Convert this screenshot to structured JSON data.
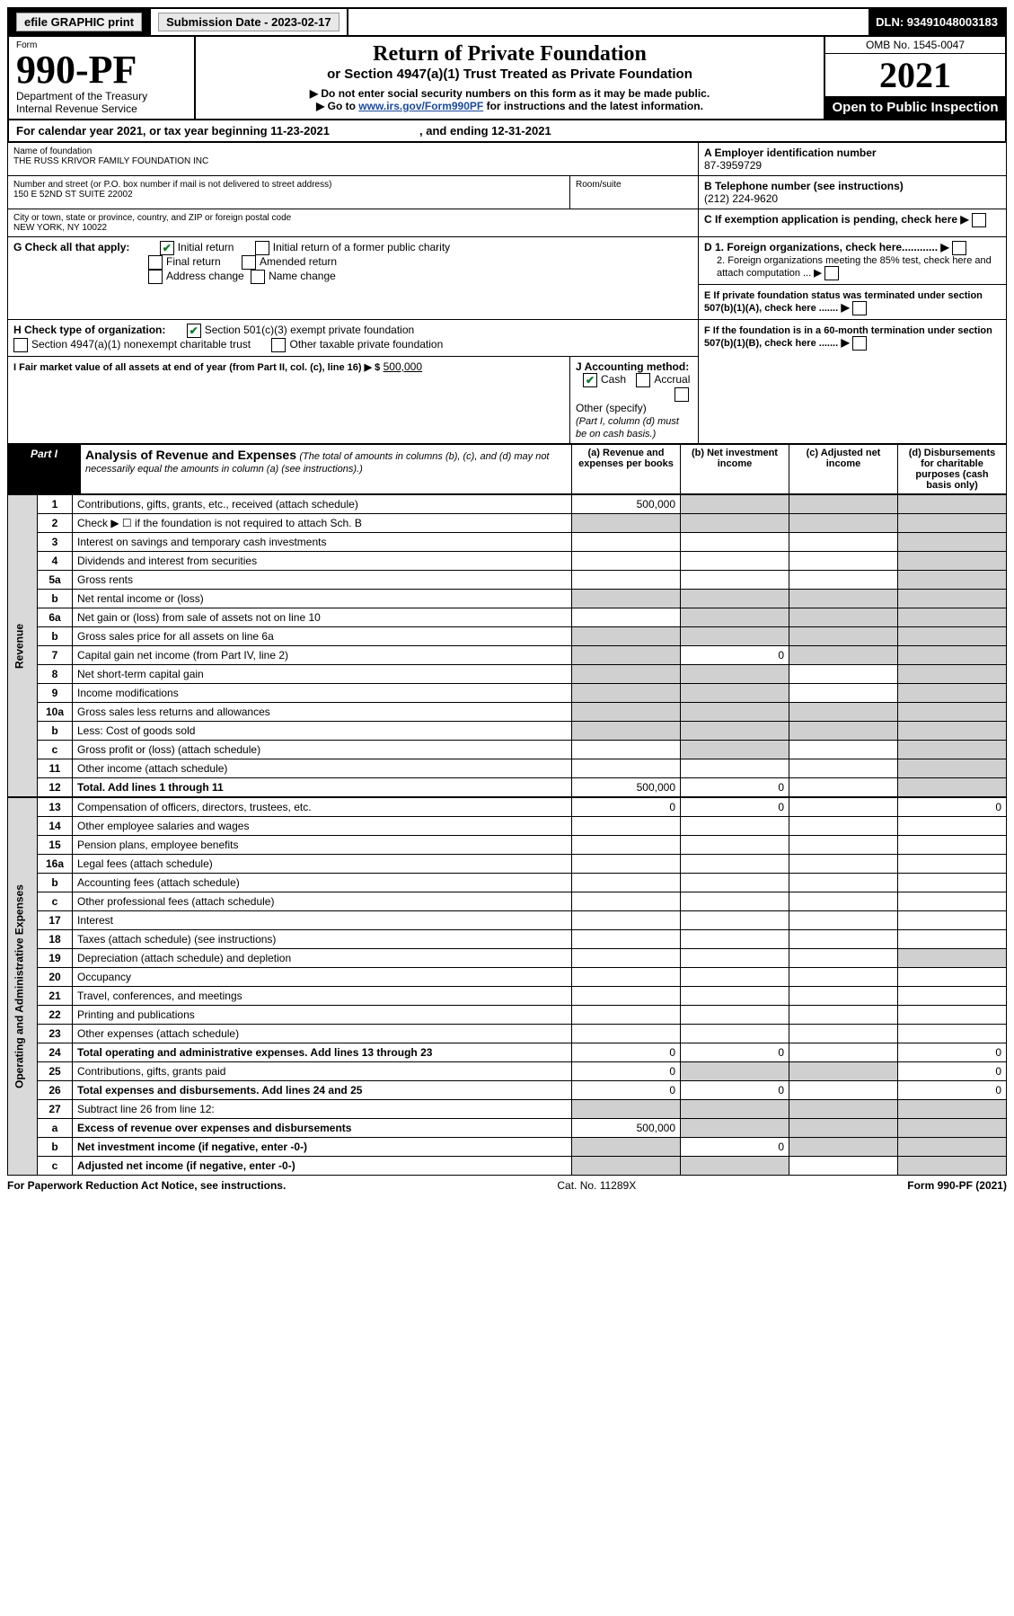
{
  "topbar": {
    "efile": "efile GRAPHIC print",
    "submission_label": "Submission Date - 2023-02-17",
    "dln": "DLN: 93491048003183"
  },
  "header": {
    "form_label": "Form",
    "form_number": "990-PF",
    "dept": "Department of the Treasury",
    "irs": "Internal Revenue Service",
    "title": "Return of Private Foundation",
    "subtitle": "or Section 4947(a)(1) Trust Treated as Private Foundation",
    "instr1": "▶ Do not enter social security numbers on this form as it may be made public.",
    "instr2_pre": "▶ Go to ",
    "instr2_link": "www.irs.gov/Form990PF",
    "instr2_post": " for instructions and the latest information.",
    "omb": "OMB No. 1545-0047",
    "year": "2021",
    "open_pub": "Open to Public Inspection"
  },
  "caly": {
    "line": "For calendar year 2021, or tax year beginning 11-23-2021",
    "ending": ", and ending 12-31-2021"
  },
  "info": {
    "name_lbl": "Name of foundation",
    "name": "THE RUSS KRIVOR FAMILY FOUNDATION INC",
    "addr_lbl": "Number and street (or P.O. box number if mail is not delivered to street address)",
    "addr": "150 E 52ND ST SUITE 22002",
    "room_lbl": "Room/suite",
    "city_lbl": "City or town, state or province, country, and ZIP or foreign postal code",
    "city": "NEW YORK, NY  10022",
    "ein_lbl": "A Employer identification number",
    "ein": "87-3959729",
    "phone_lbl": "B Telephone number (see instructions)",
    "phone": "(212) 224-9620",
    "c_lbl": "C If exemption application is pending, check here",
    "d1_lbl": "D 1. Foreign organizations, check here............",
    "d2_lbl": "2. Foreign organizations meeting the 85% test, check here and attach computation ...",
    "e_lbl": "E If private foundation status was terminated under section 507(b)(1)(A), check here .......",
    "f_lbl": "F If the foundation is in a 60-month termination under section 507(b)(1)(B), check here .......",
    "g_lbl": "G Check all that apply:",
    "g_opts": [
      "Initial return",
      "Initial return of a former public charity",
      "Final return",
      "Amended return",
      "Address change",
      "Name change"
    ],
    "h_lbl": "H Check type of organization:",
    "h_opts": [
      "Section 501(c)(3) exempt private foundation",
      "Section 4947(a)(1) nonexempt charitable trust",
      "Other taxable private foundation"
    ],
    "i_lbl": "I Fair market value of all assets at end of year (from Part II, col. (c), line 16) ▶ $",
    "i_val": "500,000",
    "j_lbl": "J Accounting method:",
    "j_opts": [
      "Cash",
      "Accrual",
      "Other (specify)"
    ],
    "j_note": "(Part I, column (d) must be on cash basis.)"
  },
  "part1": {
    "label": "Part I",
    "title": "Analysis of Revenue and Expenses",
    "desc": " (The total of amounts in columns (b), (c), and (d) may not necessarily equal the amounts in column (a) (see instructions).)",
    "col_a": "(a)   Revenue and expenses per books",
    "col_b": "(b)   Net investment income",
    "col_c": "(c)   Adjusted net income",
    "col_d": "(d)   Disbursements for charitable purposes (cash basis only)"
  },
  "sidebars": {
    "rev": "Revenue",
    "exp": "Operating and Administrative Expenses"
  },
  "rows_rev": [
    {
      "n": "1",
      "label": "Contributions, gifts, grants, etc., received (attach schedule)",
      "a": "500,000",
      "bShade": true,
      "cShade": true,
      "dShade": true
    },
    {
      "n": "2",
      "label": "Check ▶ ☐ if the foundation is not required to attach Sch. B",
      "aShade": true,
      "bShade": true,
      "cShade": true,
      "dShade": true,
      "dotsLabel": true
    },
    {
      "n": "3",
      "label": "Interest on savings and temporary cash investments",
      "dShade": true
    },
    {
      "n": "4",
      "label": "Dividends and interest from securities",
      "dShade": true
    },
    {
      "n": "5a",
      "label": "Gross rents",
      "dShade": true
    },
    {
      "n": "b",
      "label": "Net rental income or (loss)",
      "aShade": true,
      "bShade": true,
      "cShade": true,
      "dShade": true
    },
    {
      "n": "6a",
      "label": "Net gain or (loss) from sale of assets not on line 10",
      "bShade": true,
      "cShade": true,
      "dShade": true
    },
    {
      "n": "b",
      "label": "Gross sales price for all assets on line 6a",
      "aShade": true,
      "bShade": true,
      "cShade": true,
      "dShade": true
    },
    {
      "n": "7",
      "label": "Capital gain net income (from Part IV, line 2)",
      "aShade": true,
      "b": "0",
      "cShade": true,
      "dShade": true
    },
    {
      "n": "8",
      "label": "Net short-term capital gain",
      "aShade": true,
      "bShade": true,
      "dShade": true
    },
    {
      "n": "9",
      "label": "Income modifications",
      "aShade": true,
      "bShade": true,
      "dShade": true
    },
    {
      "n": "10a",
      "label": "Gross sales less returns and allowances",
      "aShade": true,
      "bShade": true,
      "cShade": true,
      "dShade": true
    },
    {
      "n": "b",
      "label": "Less: Cost of goods sold",
      "aShade": true,
      "bShade": true,
      "cShade": true,
      "dShade": true
    },
    {
      "n": "c",
      "label": "Gross profit or (loss) (attach schedule)",
      "bShade": true,
      "dShade": true
    },
    {
      "n": "11",
      "label": "Other income (attach schedule)",
      "dShade": true
    },
    {
      "n": "12",
      "label": "Total. Add lines 1 through 11",
      "bold": true,
      "a": "500,000",
      "b": "0",
      "dShade": true
    }
  ],
  "rows_exp": [
    {
      "n": "13",
      "label": "Compensation of officers, directors, trustees, etc.",
      "a": "0",
      "b": "0",
      "d": "0"
    },
    {
      "n": "14",
      "label": "Other employee salaries and wages"
    },
    {
      "n": "15",
      "label": "Pension plans, employee benefits"
    },
    {
      "n": "16a",
      "label": "Legal fees (attach schedule)"
    },
    {
      "n": "b",
      "label": "Accounting fees (attach schedule)"
    },
    {
      "n": "c",
      "label": "Other professional fees (attach schedule)"
    },
    {
      "n": "17",
      "label": "Interest"
    },
    {
      "n": "18",
      "label": "Taxes (attach schedule) (see instructions)"
    },
    {
      "n": "19",
      "label": "Depreciation (attach schedule) and depletion",
      "dShade": true
    },
    {
      "n": "20",
      "label": "Occupancy"
    },
    {
      "n": "21",
      "label": "Travel, conferences, and meetings"
    },
    {
      "n": "22",
      "label": "Printing and publications"
    },
    {
      "n": "23",
      "label": "Other expenses (attach schedule)"
    },
    {
      "n": "24",
      "label": "Total operating and administrative expenses. Add lines 13 through 23",
      "bold": true,
      "a": "0",
      "b": "0",
      "d": "0"
    },
    {
      "n": "25",
      "label": "Contributions, gifts, grants paid",
      "a": "0",
      "bShade": true,
      "cShade": true,
      "d": "0"
    },
    {
      "n": "26",
      "label": "Total expenses and disbursements. Add lines 24 and 25",
      "bold": true,
      "a": "0",
      "b": "0",
      "d": "0"
    },
    {
      "n": "27",
      "label": "Subtract line 26 from line 12:",
      "aShade": true,
      "bShade": true,
      "cShade": true,
      "dShade": true
    },
    {
      "n": "a",
      "label": "Excess of revenue over expenses and disbursements",
      "bold": true,
      "a": "500,000",
      "bShade": true,
      "cShade": true,
      "dShade": true
    },
    {
      "n": "b",
      "label": "Net investment income (if negative, enter -0-)",
      "bold": true,
      "aShade": true,
      "b": "0",
      "cShade": true,
      "dShade": true
    },
    {
      "n": "c",
      "label": "Adjusted net income (if negative, enter -0-)",
      "bold": true,
      "aShade": true,
      "bShade": true,
      "dShade": true
    }
  ],
  "footer": {
    "left": "For Paperwork Reduction Act Notice, see instructions.",
    "mid": "Cat. No. 11289X",
    "right": "Form 990-PF (2021)"
  },
  "colors": {
    "shade": "#d0d0d0",
    "link": "#1a4a9c",
    "check": "#0a7a2a"
  }
}
